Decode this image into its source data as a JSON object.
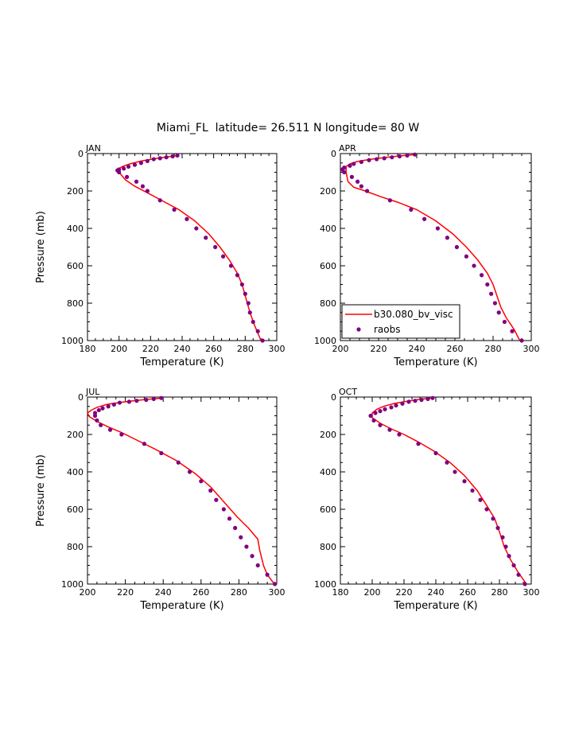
{
  "title": "Miami_FL  latitude= 26.511 N longitude= 80 W",
  "colors": {
    "model": "#ff0000",
    "obs": "#800080",
    "axis": "#000000"
  },
  "chart_data": [
    {
      "type": "line",
      "panel": "JAN",
      "xlabel": "Temperature (K)",
      "ylabel": "Pressure (mb)",
      "xlim": [
        180,
        300
      ],
      "ylim": [
        1000,
        0
      ],
      "xticks": [
        "180",
        "200",
        "220",
        "240",
        "260",
        "280",
        "300"
      ],
      "yticks": [
        "0",
        "200",
        "400",
        "600",
        "800",
        "1000"
      ],
      "legend": false,
      "series": [
        {
          "kind": "line",
          "points": [
            [
              238,
              10
            ],
            [
              230,
              18
            ],
            [
              222,
              28
            ],
            [
              214,
              40
            ],
            [
              207,
              55
            ],
            [
              202,
              70
            ],
            [
              199,
              85
            ],
            [
              200,
              100
            ],
            [
              204,
              140
            ],
            [
              210,
              175
            ],
            [
              218,
              210
            ],
            [
              228,
              255
            ],
            [
              238,
              300
            ],
            [
              248,
              360
            ],
            [
              257,
              430
            ],
            [
              264,
              500
            ],
            [
              270,
              570
            ],
            [
              275,
              640
            ],
            [
              278,
              700
            ],
            [
              280,
              760
            ],
            [
              283,
              850
            ],
            [
              286,
              920
            ],
            [
              290,
              1000
            ]
          ]
        },
        {
          "kind": "scatter",
          "points": [
            [
              237,
              10
            ],
            [
              234,
              15
            ],
            [
              230,
              20
            ],
            [
              226,
              25
            ],
            [
              222,
              30
            ],
            [
              218,
              40
            ],
            [
              214,
              50
            ],
            [
              210,
              60
            ],
            [
              206,
              70
            ],
            [
              203,
              80
            ],
            [
              200,
              85
            ],
            [
              199,
              90
            ],
            [
              200,
              100
            ],
            [
              205,
              125
            ],
            [
              211,
              150
            ],
            [
              215,
              175
            ],
            [
              218,
              200
            ],
            [
              226,
              250
            ],
            [
              235,
              300
            ],
            [
              243,
              350
            ],
            [
              249,
              400
            ],
            [
              255,
              450
            ],
            [
              261,
              500
            ],
            [
              266,
              550
            ],
            [
              271,
              600
            ],
            [
              275,
              650
            ],
            [
              278,
              700
            ],
            [
              280,
              750
            ],
            [
              282,
              800
            ],
            [
              283,
              850
            ],
            [
              285,
              900
            ],
            [
              288,
              950
            ],
            [
              291,
              1000
            ]
          ]
        }
      ]
    },
    {
      "type": "line",
      "panel": "APR",
      "xlabel": "Temperature (K)",
      "ylabel": "",
      "xlim": [
        200,
        300
      ],
      "ylim": [
        1000,
        0
      ],
      "xticks": [
        "200",
        "220",
        "240",
        "260",
        "280",
        "300"
      ],
      "yticks": [
        "0",
        "200",
        "400",
        "600",
        "800",
        "1000"
      ],
      "legend": true,
      "legend_entries": [
        "b30.080_bv_visc",
        "raobs"
      ],
      "series": [
        {
          "name": "b30.080_bv_visc",
          "kind": "line",
          "points": [
            [
              239,
              5
            ],
            [
              232,
              12
            ],
            [
              224,
              20
            ],
            [
              216,
              30
            ],
            [
              209,
              42
            ],
            [
              205,
              55
            ],
            [
              203,
              70
            ],
            [
              203,
              100
            ],
            [
              204,
              150
            ],
            [
              207,
              180
            ],
            [
              213,
              200
            ],
            [
              221,
              230
            ],
            [
              230,
              260
            ],
            [
              240,
              300
            ],
            [
              250,
              360
            ],
            [
              259,
              430
            ],
            [
              266,
              500
            ],
            [
              272,
              570
            ],
            [
              277,
              640
            ],
            [
              280,
              700
            ],
            [
              282,
              760
            ],
            [
              284,
              820
            ],
            [
              287,
              880
            ],
            [
              291,
              940
            ],
            [
              294,
              1000
            ]
          ]
        },
        {
          "name": "raobs",
          "kind": "scatter",
          "points": [
            [
              239,
              5
            ],
            [
              235,
              10
            ],
            [
              231,
              15
            ],
            [
              227,
              20
            ],
            [
              223,
              25
            ],
            [
              219,
              30
            ],
            [
              215,
              35
            ],
            [
              211,
              45
            ],
            [
              207,
              55
            ],
            [
              205,
              65
            ],
            [
              202,
              75
            ],
            [
              201,
              85
            ],
            [
              202,
              100
            ],
            [
              206,
              125
            ],
            [
              209,
              150
            ],
            [
              211,
              175
            ],
            [
              214,
              200
            ],
            [
              226,
              250
            ],
            [
              237,
              300
            ],
            [
              244,
              350
            ],
            [
              251,
              400
            ],
            [
              256,
              450
            ],
            [
              261,
              500
            ],
            [
              266,
              550
            ],
            [
              270,
              600
            ],
            [
              274,
              650
            ],
            [
              277,
              700
            ],
            [
              279,
              750
            ],
            [
              281,
              800
            ],
            [
              283,
              850
            ],
            [
              286,
              900
            ],
            [
              290,
              950
            ],
            [
              295,
              1000
            ]
          ]
        }
      ]
    },
    {
      "type": "line",
      "panel": "JUL",
      "xlabel": "Temperature (K)",
      "ylabel": "Pressure (mb)",
      "xlim": [
        200,
        300
      ],
      "ylim": [
        1000,
        0
      ],
      "xticks": [
        "200",
        "220",
        "240",
        "260",
        "280",
        "300"
      ],
      "yticks": [
        "0",
        "200",
        "400",
        "600",
        "800",
        "1000"
      ],
      "legend": false,
      "series": [
        {
          "kind": "line",
          "points": [
            [
              240,
              5
            ],
            [
              232,
              12
            ],
            [
              224,
              20
            ],
            [
              216,
              30
            ],
            [
              210,
              40
            ],
            [
              205,
              55
            ],
            [
              202,
              70
            ],
            [
              200,
              85
            ],
            [
              201,
              105
            ],
            [
              205,
              130
            ],
            [
              211,
              160
            ],
            [
              218,
              190
            ],
            [
              226,
              230
            ],
            [
              236,
              280
            ],
            [
              247,
              340
            ],
            [
              257,
              410
            ],
            [
              265,
              480
            ],
            [
              272,
              560
            ],
            [
              279,
              640
            ],
            [
              285,
              700
            ],
            [
              290,
              760
            ],
            [
              291,
              820
            ],
            [
              292,
              860
            ],
            [
              293,
              900
            ],
            [
              295,
              950
            ],
            [
              298,
              990
            ],
            [
              300,
              1000
            ]
          ]
        },
        {
          "kind": "scatter",
          "points": [
            [
              239,
              5
            ],
            [
              235,
              10
            ],
            [
              231,
              15
            ],
            [
              226,
              20
            ],
            [
              222,
              25
            ],
            [
              217,
              30
            ],
            [
              214,
              40
            ],
            [
              211,
              50
            ],
            [
              208,
              60
            ],
            [
              206,
              70
            ],
            [
              204,
              85
            ],
            [
              204,
              100
            ],
            [
              205,
              125
            ],
            [
              207,
              150
            ],
            [
              212,
              175
            ],
            [
              218,
              200
            ],
            [
              230,
              250
            ],
            [
              239,
              300
            ],
            [
              248,
              350
            ],
            [
              254,
              400
            ],
            [
              260,
              450
            ],
            [
              265,
              500
            ],
            [
              268,
              550
            ],
            [
              272,
              600
            ],
            [
              275,
              650
            ],
            [
              278,
              700
            ],
            [
              281,
              750
            ],
            [
              284,
              800
            ],
            [
              287,
              850
            ],
            [
              290,
              900
            ],
            [
              295,
              950
            ],
            [
              299,
              1000
            ]
          ]
        }
      ]
    },
    {
      "type": "line",
      "panel": "OCT",
      "xlabel": "Temperature (K)",
      "ylabel": "",
      "xlim": [
        180,
        300
      ],
      "ylim": [
        1000,
        0
      ],
      "xticks": [
        "180",
        "200",
        "220",
        "240",
        "260",
        "280",
        "300"
      ],
      "yticks": [
        "0",
        "200",
        "400",
        "600",
        "800",
        "1000"
      ],
      "legend": false,
      "series": [
        {
          "kind": "line",
          "points": [
            [
              238,
              5
            ],
            [
              230,
              12
            ],
            [
              222,
              22
            ],
            [
              214,
              34
            ],
            [
              207,
              50
            ],
            [
              203,
              65
            ],
            [
              200,
              85
            ],
            [
              200,
              110
            ],
            [
              205,
              140
            ],
            [
              212,
              170
            ],
            [
              220,
              200
            ],
            [
              229,
              240
            ],
            [
              239,
              290
            ],
            [
              249,
              350
            ],
            [
              258,
              420
            ],
            [
              266,
              500
            ],
            [
              272,
              580
            ],
            [
              277,
              650
            ],
            [
              280,
              720
            ],
            [
              283,
              800
            ],
            [
              287,
              870
            ],
            [
              292,
              940
            ],
            [
              297,
              1000
            ]
          ]
        },
        {
          "kind": "scatter",
          "points": [
            [
              238,
              5
            ],
            [
              235,
              10
            ],
            [
              231,
              15
            ],
            [
              227,
              20
            ],
            [
              223,
              25
            ],
            [
              219,
              35
            ],
            [
              215,
              45
            ],
            [
              212,
              55
            ],
            [
              208,
              65
            ],
            [
              205,
              75
            ],
            [
              202,
              85
            ],
            [
              199,
              100
            ],
            [
              201,
              125
            ],
            [
              205,
              150
            ],
            [
              211,
              175
            ],
            [
              217,
              200
            ],
            [
              229,
              250
            ],
            [
              240,
              300
            ],
            [
              247,
              350
            ],
            [
              252,
              400
            ],
            [
              258,
              450
            ],
            [
              263,
              500
            ],
            [
              268,
              550
            ],
            [
              272,
              600
            ],
            [
              276,
              650
            ],
            [
              279,
              700
            ],
            [
              282,
              750
            ],
            [
              284,
              800
            ],
            [
              286,
              850
            ],
            [
              289,
              900
            ],
            [
              292,
              950
            ],
            [
              296,
              1000
            ]
          ]
        }
      ]
    }
  ]
}
